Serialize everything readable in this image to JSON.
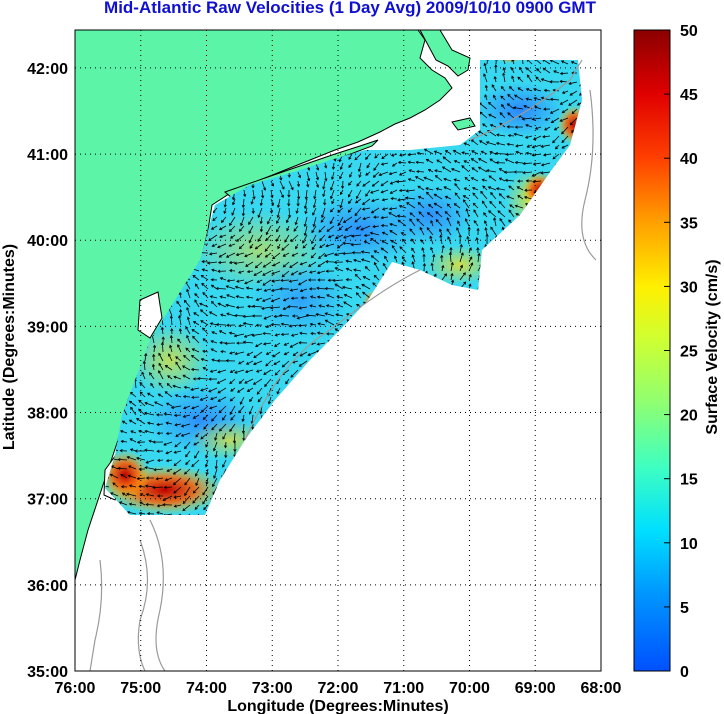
{
  "title": "Mid-Atlantic Raw Velocities (1 Day Avg) 2009/10/10 0900 GMT",
  "x_axis": {
    "label": "Longitude (Degrees:Minutes)",
    "ticks": [
      "76:00",
      "75:00",
      "74:00",
      "73:00",
      "72:00",
      "71:00",
      "70:00",
      "69:00",
      "68:00"
    ],
    "values": [
      -76,
      -75,
      -74,
      -73,
      -72,
      -71,
      -70,
      -69,
      -68
    ]
  },
  "y_axis": {
    "label": "Latitude (Degrees:Minutes)",
    "ticks": [
      "42:00",
      "41:00",
      "40:00",
      "39:00",
      "38:00",
      "37:00",
      "36:00",
      "35:00"
    ],
    "values": [
      42,
      41,
      40,
      39,
      38,
      37,
      36,
      35
    ]
  },
  "colorbar": {
    "label": "Surface Velocity (cm/s)",
    "ticks": [
      "50",
      "45",
      "40",
      "35",
      "30",
      "25",
      "20",
      "15",
      "10",
      "5",
      "0"
    ],
    "range": [
      0,
      50
    ],
    "colormap": "jet"
  },
  "colors": {
    "land": "#5cf5a8",
    "title": "#1010d0",
    "grid": "#000000",
    "coast": "#000000",
    "bathymetry": "#9a9a9a"
  },
  "chart_data": {
    "type": "heatmap",
    "grid": "dotted"
  }
}
